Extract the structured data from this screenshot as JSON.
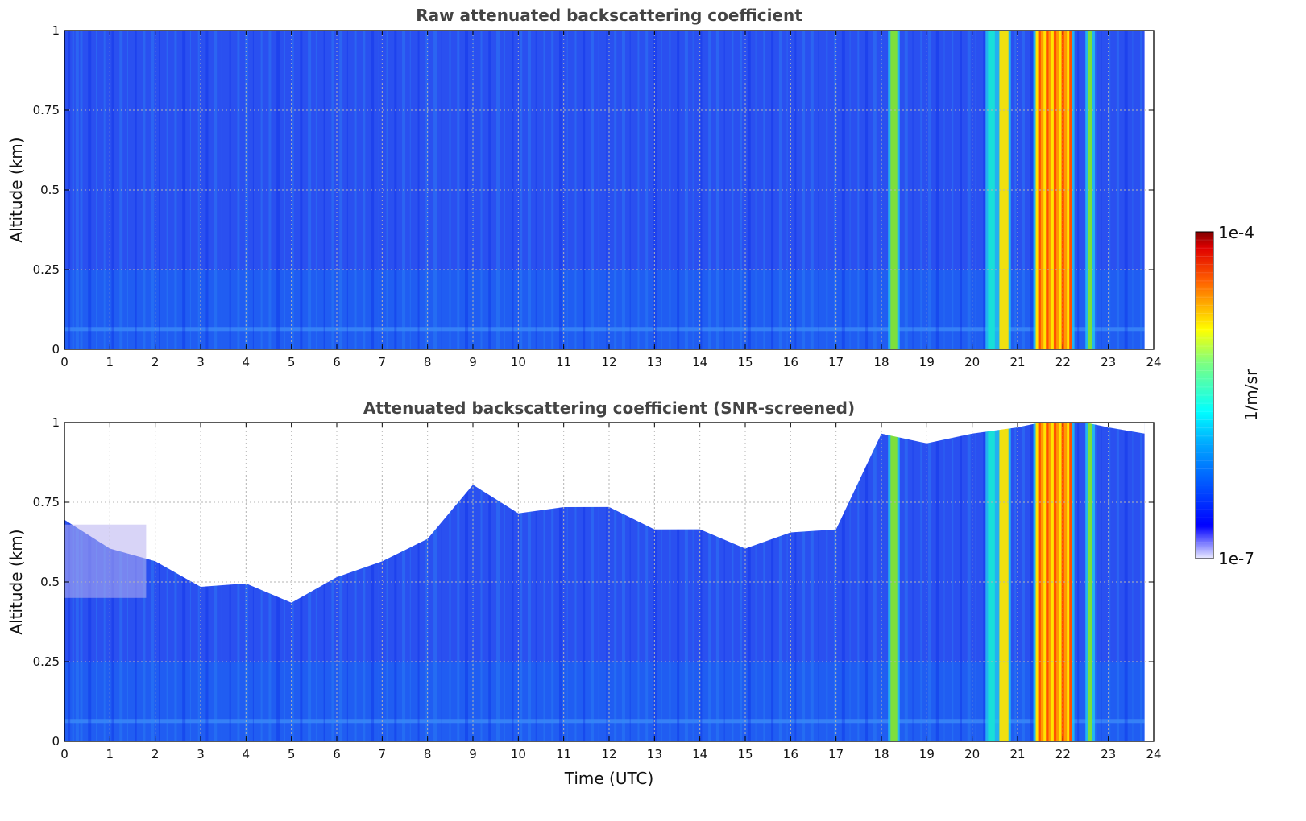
{
  "chart_data": [
    {
      "type": "heatmap",
      "title": "Raw attenuated backscattering coefficient",
      "ylabel": "Altitude (km)",
      "xlabel": "",
      "xlim": [
        0,
        24
      ],
      "ylim": [
        0,
        1
      ],
      "xticks": [
        "0",
        "1",
        "2",
        "3",
        "4",
        "5",
        "6",
        "7",
        "8",
        "9",
        "10",
        "11",
        "12",
        "13",
        "14",
        "15",
        "16",
        "17",
        "18",
        "19",
        "20",
        "21",
        "22",
        "23",
        "24"
      ],
      "yticks": [
        "0",
        "0.25",
        "0.5",
        "0.75",
        "1"
      ],
      "grid": true,
      "data_end_time": 23.8,
      "screened": false,
      "strong_signal_intervals": [
        {
          "start": 18.2,
          "end": 18.35,
          "level": "green"
        },
        {
          "start": 20.35,
          "end": 20.5,
          "level": "cyan"
        },
        {
          "start": 20.6,
          "end": 20.8,
          "level": "yellow"
        },
        {
          "start": 21.4,
          "end": 22.2,
          "level": "orange-red"
        },
        {
          "start": 22.55,
          "end": 22.65,
          "level": "green"
        }
      ]
    },
    {
      "type": "heatmap",
      "title": "Attenuated backscattering coefficient (SNR-screened)",
      "ylabel": "Altitude (km)",
      "xlabel": "Time (UTC)",
      "xlim": [
        0,
        24
      ],
      "ylim": [
        0,
        1
      ],
      "xticks": [
        "0",
        "1",
        "2",
        "3",
        "4",
        "5",
        "6",
        "7",
        "8",
        "9",
        "10",
        "11",
        "12",
        "13",
        "14",
        "15",
        "16",
        "17",
        "18",
        "19",
        "20",
        "21",
        "22",
        "23",
        "24"
      ],
      "yticks": [
        "0",
        "0.25",
        "0.5",
        "0.75",
        "1"
      ],
      "grid": true,
      "data_end_time": 23.8,
      "screened": true,
      "valid_signal_top_km": [
        {
          "time": 0,
          "alt": 0.68
        },
        {
          "time": 1,
          "alt": 0.62
        },
        {
          "time": 2,
          "alt": 0.55
        },
        {
          "time": 3,
          "alt": 0.5
        },
        {
          "time": 4,
          "alt": 0.48
        },
        {
          "time": 5,
          "alt": 0.45
        },
        {
          "time": 6,
          "alt": 0.5
        },
        {
          "time": 7,
          "alt": 0.58
        },
        {
          "time": 8,
          "alt": 0.62
        },
        {
          "time": 9,
          "alt": 0.82
        },
        {
          "time": 10,
          "alt": 0.7
        },
        {
          "time": 11,
          "alt": 0.75
        },
        {
          "time": 12,
          "alt": 0.72
        },
        {
          "time": 13,
          "alt": 0.68
        },
        {
          "time": 14,
          "alt": 0.65
        },
        {
          "time": 15,
          "alt": 0.62
        },
        {
          "time": 16,
          "alt": 0.64
        },
        {
          "time": 17,
          "alt": 0.68
        },
        {
          "time": 18,
          "alt": 0.95
        },
        {
          "time": 19,
          "alt": 0.95
        },
        {
          "time": 20,
          "alt": 0.95
        },
        {
          "time": 21,
          "alt": 1.0
        },
        {
          "time": 22,
          "alt": 1.0
        },
        {
          "time": 23,
          "alt": 1.0
        },
        {
          "time": 23.8,
          "alt": 0.95
        }
      ]
    }
  ],
  "colorbar": {
    "label": "1/m/sr",
    "min_label": "1e-7",
    "max_label": "1e-4",
    "scale": "log",
    "colormap": "jet"
  }
}
